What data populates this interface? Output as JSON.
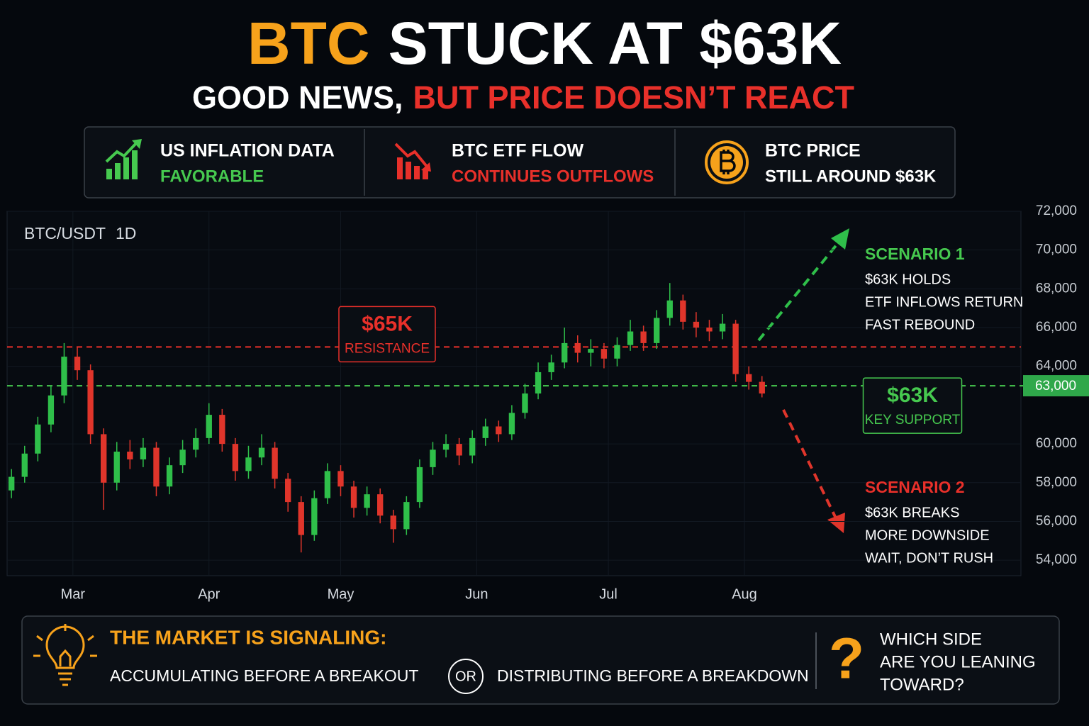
{
  "header": {
    "title": [
      "BTC",
      "STUCK AT $63K"
    ],
    "subtitle": [
      "GOOD NEWS,",
      "BUT PRICE DOESN’T REACT"
    ]
  },
  "cards": [
    {
      "title": "US INFLATION DATA",
      "status": "FAVORABLE",
      "color": "#46c94f"
    },
    {
      "title": "BTC ETF FLOW",
      "status": "CONTINUES OUTFLOWS",
      "color": "#e8302a"
    },
    {
      "title": "BTC PRICE",
      "status": "STILL AROUND $63K",
      "color": "#ffffff"
    }
  ],
  "chart_data": {
    "type": "candlestick",
    "symbol": "BTC/USDT",
    "interval": "1D",
    "up_color": "#2fbf4a",
    "down_color": "#e0352b",
    "x": [
      1,
      4,
      7,
      10,
      13,
      16,
      19,
      22,
      25,
      28,
      31,
      34,
      37,
      40,
      43,
      46,
      49,
      52,
      55,
      58,
      61,
      64,
      67,
      70,
      73,
      76,
      79,
      82,
      85,
      88,
      91,
      94,
      97,
      100,
      103,
      106,
      109,
      112,
      115,
      118,
      121,
      124,
      127,
      130,
      133,
      136,
      139,
      142,
      145,
      148,
      151,
      154,
      157,
      160,
      163,
      166,
      169,
      172
    ],
    "open": [
      57600,
      58300,
      59500,
      61000,
      62500,
      64500,
      63800,
      60500,
      58000,
      59600,
      59200,
      59800,
      57800,
      58900,
      59700,
      60300,
      61500,
      60000,
      58600,
      59300,
      59800,
      58200,
      57000,
      55300,
      57200,
      58600,
      57800,
      56700,
      57400,
      56300,
      55600,
      57000,
      58800,
      59700,
      60000,
      59400,
      60300,
      60900,
      60500,
      61600,
      62600,
      63700,
      64200,
      65200,
      64700,
      64900,
      64400,
      65100,
      65800,
      65200,
      66500,
      67400,
      66300,
      66000,
      65800,
      66200,
      63600,
      63200
    ],
    "high": [
      58700,
      59900,
      61400,
      63000,
      65200,
      65000,
      64100,
      60800,
      60100,
      60200,
      60300,
      60100,
      59300,
      60200,
      60800,
      62100,
      61800,
      60300,
      59900,
      60500,
      60100,
      58500,
      57300,
      57600,
      59000,
      58900,
      58100,
      57800,
      57700,
      56600,
      57300,
      59200,
      60100,
      60500,
      60300,
      60700,
      61300,
      61200,
      62000,
      63100,
      64200,
      64600,
      66000,
      65600,
      65400,
      65200,
      65500,
      66400,
      66100,
      66900,
      68300,
      67700,
      66800,
      66400,
      66700,
      66400,
      64000,
      63500
    ],
    "low": [
      57200,
      58000,
      59100,
      60600,
      62100,
      63300,
      60000,
      56600,
      57600,
      58700,
      58800,
      57300,
      57400,
      58500,
      59300,
      60000,
      59600,
      58100,
      58200,
      58900,
      57700,
      56500,
      54400,
      55000,
      56900,
      57300,
      56200,
      56300,
      55900,
      54900,
      55300,
      56700,
      58400,
      59300,
      58900,
      59000,
      59900,
      60100,
      60200,
      61300,
      62300,
      63300,
      63900,
      64200,
      64000,
      63900,
      64000,
      64800,
      64800,
      64900,
      66100,
      65900,
      65500,
      65300,
      65400,
      63200,
      62800,
      62400
    ],
    "close": [
      58300,
      59500,
      61000,
      62500,
      64500,
      63800,
      60500,
      58000,
      59600,
      59200,
      59800,
      57800,
      58900,
      59700,
      60300,
      61500,
      60000,
      58600,
      59300,
      59800,
      58200,
      57000,
      55300,
      57200,
      58600,
      57800,
      56700,
      57400,
      56300,
      55600,
      57000,
      58800,
      59700,
      60000,
      59400,
      60300,
      60900,
      60500,
      61600,
      62600,
      63700,
      64200,
      65200,
      64700,
      64900,
      64400,
      65100,
      65800,
      65200,
      66500,
      67400,
      66300,
      66000,
      65800,
      66200,
      63600,
      63200,
      62600
    ],
    "xlim": [
      0,
      231
    ],
    "xticks": [
      {
        "value": 15,
        "label": "Mar"
      },
      {
        "value": 46,
        "label": "Apr"
      },
      {
        "value": 76,
        "label": "May"
      },
      {
        "value": 107,
        "label": "Jun"
      },
      {
        "value": 137,
        "label": "Jul"
      },
      {
        "value": 168,
        "label": "Aug"
      }
    ],
    "ylim": [
      53200,
      72000
    ],
    "yticks": [
      {
        "value": 54000,
        "label": "54,000"
      },
      {
        "value": 56000,
        "label": "56,000"
      },
      {
        "value": 58000,
        "label": "58,000"
      },
      {
        "value": 60000,
        "label": "60,000"
      },
      {
        "value": 64000,
        "label": "64,000"
      },
      {
        "value": 66000,
        "label": "66,000"
      },
      {
        "value": 68000,
        "label": "68,000"
      },
      {
        "value": 70000,
        "label": "70,000"
      },
      {
        "value": 72000,
        "label": "72,000"
      }
    ],
    "grid": true,
    "price_tag": {
      "value": 63000,
      "label": "63,000"
    },
    "levels": [
      {
        "value": 65000,
        "label": "$65K",
        "note": "RESISTANCE",
        "color": "#e8302a"
      },
      {
        "value": 63000,
        "label": "$63K",
        "note": "KEY SUPPORT",
        "color": "#46c94f"
      }
    ],
    "scenarios": [
      {
        "title": "SCENARIO 1",
        "lines": [
          "$63K HOLDS",
          "ETF INFLOWS RETURN",
          "FAST REBOUND"
        ],
        "color": "#46c94f"
      },
      {
        "title": "SCENARIO 2",
        "lines": [
          "$63K BREAKS",
          "MORE DOWNSIDE",
          "WAIT, DON’T RUSH"
        ],
        "color": "#e8302a"
      }
    ]
  },
  "footer": {
    "heading": "THE MARKET IS SIGNALING:",
    "option_a": "ACCUMULATING BEFORE A BREAKOUT",
    "or": "OR",
    "option_b": "DISTRIBUTING BEFORE A BREAKDOWN",
    "question_mark": "?",
    "question": [
      "WHICH SIDE",
      "ARE YOU LEANING",
      "TOWARD?"
    ]
  }
}
